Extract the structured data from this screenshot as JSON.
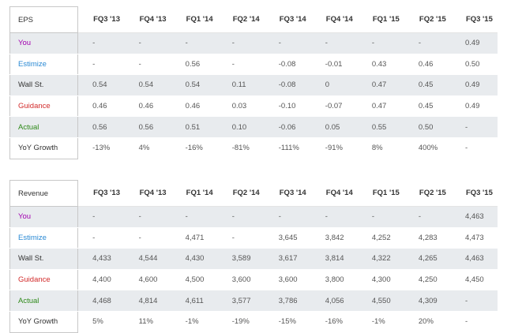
{
  "colors": {
    "you": "#a100b0",
    "estimize": "#2b8ad4",
    "wall_st": "#333333",
    "guidance": "#d22b2b",
    "actual": "#2f8a1a",
    "row_shade": "#e8ebee"
  },
  "eps": {
    "title": "EPS",
    "quarters": [
      "FQ3 '13",
      "FQ4 '13",
      "FQ1 '14",
      "FQ2 '14",
      "FQ3 '14",
      "FQ4 '14",
      "FQ1 '15",
      "FQ2 '15",
      "FQ3 '15"
    ],
    "rows": [
      {
        "label": "You",
        "values": [
          "-",
          "-",
          "-",
          "-",
          "-",
          "-",
          "-",
          "-",
          "0.49"
        ]
      },
      {
        "label": "Estimize",
        "values": [
          "-",
          "-",
          "0.56",
          "-",
          "-0.08",
          "-0.01",
          "0.43",
          "0.46",
          "0.50"
        ]
      },
      {
        "label": "Wall St.",
        "values": [
          "0.54",
          "0.54",
          "0.54",
          "0.11",
          "-0.08",
          "0",
          "0.47",
          "0.45",
          "0.49"
        ]
      },
      {
        "label": "Guidance",
        "values": [
          "0.46",
          "0.46",
          "0.46",
          "0.03",
          "-0.10",
          "-0.07",
          "0.47",
          "0.45",
          "0.49"
        ]
      },
      {
        "label": "Actual",
        "values": [
          "0.56",
          "0.56",
          "0.51",
          "0.10",
          "-0.06",
          "0.05",
          "0.55",
          "0.50",
          "-"
        ]
      },
      {
        "label": "YoY Growth",
        "values": [
          "-13%",
          "4%",
          "-16%",
          "-81%",
          "-111%",
          "-91%",
          "8%",
          "400%",
          "-"
        ]
      }
    ]
  },
  "revenue": {
    "title": "Revenue",
    "quarters": [
      "FQ3 '13",
      "FQ4 '13",
      "FQ1 '14",
      "FQ2 '14",
      "FQ3 '14",
      "FQ4 '14",
      "FQ1 '15",
      "FQ2 '15",
      "FQ3 '15"
    ],
    "rows": [
      {
        "label": "You",
        "values": [
          "-",
          "-",
          "-",
          "-",
          "-",
          "-",
          "-",
          "-",
          "4,463"
        ]
      },
      {
        "label": "Estimize",
        "values": [
          "-",
          "-",
          "4,471",
          "-",
          "3,645",
          "3,842",
          "4,252",
          "4,283",
          "4,473"
        ]
      },
      {
        "label": "Wall St.",
        "values": [
          "4,433",
          "4,544",
          "4,430",
          "3,589",
          "3,617",
          "3,814",
          "4,322",
          "4,265",
          "4,463"
        ]
      },
      {
        "label": "Guidance",
        "values": [
          "4,400",
          "4,600",
          "4,500",
          "3,600",
          "3,600",
          "3,800",
          "4,300",
          "4,250",
          "4,450"
        ]
      },
      {
        "label": "Actual",
        "values": [
          "4,468",
          "4,814",
          "4,611",
          "3,577",
          "3,786",
          "4,056",
          "4,550",
          "4,309",
          "-"
        ]
      },
      {
        "label": "YoY Growth",
        "values": [
          "5%",
          "11%",
          "-1%",
          "-19%",
          "-15%",
          "-16%",
          "-1%",
          "20%",
          "-"
        ]
      }
    ]
  }
}
